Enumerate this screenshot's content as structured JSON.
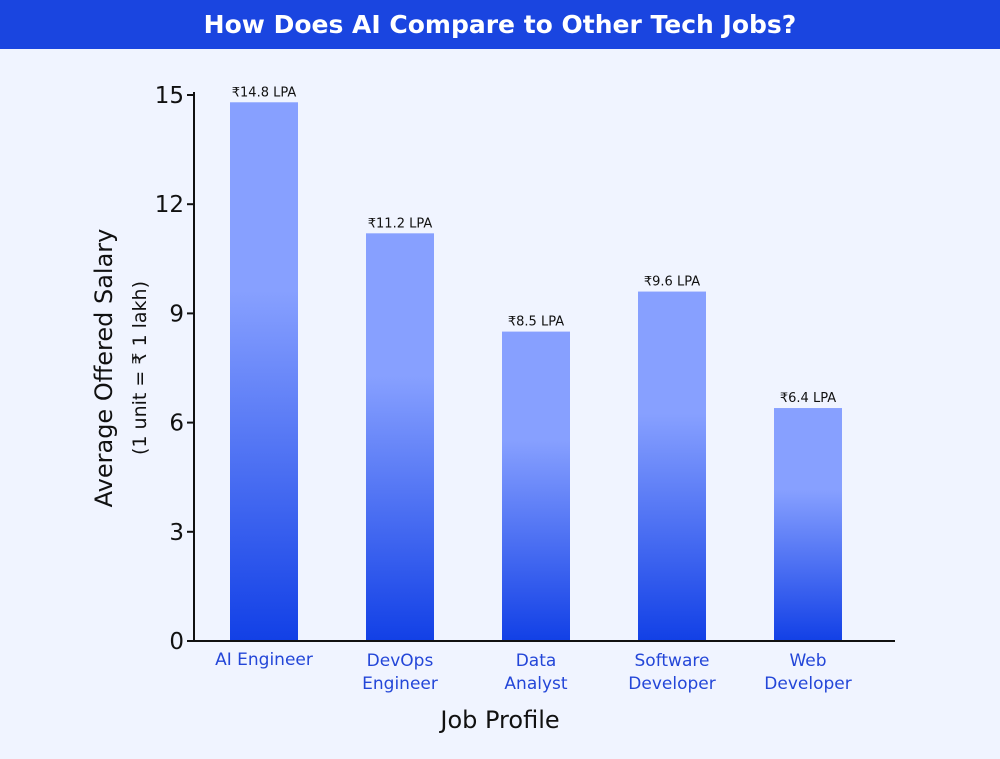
{
  "title": "How Does AI Compare to Other Tech Jobs?",
  "colors": {
    "title_bg": "#1a45e0",
    "bar_top": "#87a0ff",
    "bar_bottom": "#1240e6",
    "category_text": "#2346d8",
    "background": "#f0f4ff"
  },
  "chart_data": {
    "type": "bar",
    "categories": [
      [
        "AI Engineer"
      ],
      [
        "DevOps",
        "Engineer"
      ],
      [
        "Data",
        "Analyst"
      ],
      [
        "Software",
        "Developer"
      ],
      [
        "Web",
        "Developer"
      ]
    ],
    "values": [
      14.8,
      11.2,
      8.5,
      9.6,
      6.4
    ],
    "data_labels": [
      "₹14.8 LPA",
      "₹11.2 LPA",
      "₹8.5 LPA",
      "₹9.6 LPA",
      "₹6.4 LPA"
    ],
    "xlabel": "Job Profile",
    "ylabel": "Average Offered Salary",
    "ylabel_sub": "(1 unit = ₹ 1 lakh)",
    "ylim": [
      0,
      15
    ],
    "yticks": [
      0,
      3,
      6,
      9,
      12,
      15
    ],
    "grid": false,
    "legend": "none"
  }
}
